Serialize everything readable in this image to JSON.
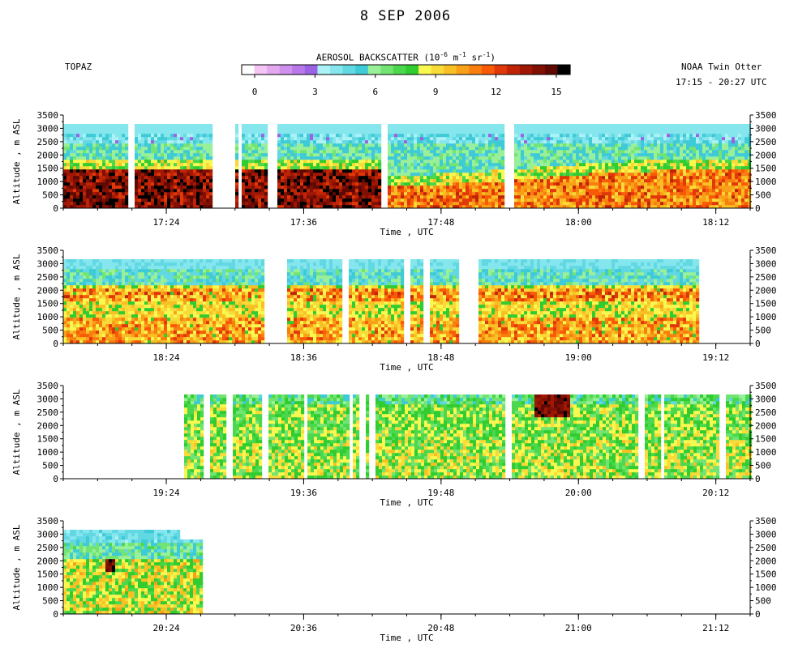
{
  "title": "8 SEP 2006",
  "left_label": "TOPAZ",
  "right_label_line1": "NOAA Twin Otter",
  "right_label_line2": "17:15 - 20:27 UTC",
  "colorbar": {
    "title_prefix": "AEROSOL BACKSCATTER (10",
    "title_exp1": "-6",
    "title_mid1": " m",
    "title_exp2": "-1",
    "title_mid2": " sr",
    "title_exp3": "-1",
    "title_suffix": ")",
    "range": [
      0,
      15
    ],
    "ticks": [
      "0",
      "3",
      "6",
      "9",
      "12",
      "15"
    ],
    "colors": [
      "#ffffff",
      "#f4c4f4",
      "#e4a8f0",
      "#d090ee",
      "#b878ea",
      "#9c62e6",
      "#aaf2f6",
      "#86e6ee",
      "#62d8e2",
      "#3ecad6",
      "#98f098",
      "#72e472",
      "#4cd84c",
      "#30cc30",
      "#f8f850",
      "#f8da38",
      "#f8c024",
      "#f8a018",
      "#f87e10",
      "#f85a08",
      "#e03808",
      "#c02406",
      "#a01804",
      "#801004",
      "#600802",
      "#000000"
    ]
  },
  "chart_data": [
    {
      "type": "heatmap",
      "title": "",
      "xlabel": "Time , UTC",
      "ylabel": "Altitude , m ASL",
      "x_range": [
        "17:15",
        "18:15"
      ],
      "ylim": [
        0,
        3500
      ],
      "x_ticks": [
        "17:24",
        "17:36",
        "17:48",
        "18:00",
        "18:12"
      ],
      "y_ticks": [
        "0",
        "500",
        "1000",
        "1500",
        "2000",
        "2500",
        "3000",
        "3500"
      ]
    },
    {
      "type": "heatmap",
      "title": "",
      "xlabel": "Time , UTC",
      "ylabel": "Altitude , m ASL",
      "x_range": [
        "18:15",
        "19:15"
      ],
      "ylim": [
        0,
        3500
      ],
      "x_ticks": [
        "18:24",
        "18:36",
        "18:48",
        "19:00",
        "19:12"
      ],
      "y_ticks": [
        "0",
        "500",
        "1000",
        "1500",
        "2000",
        "2500",
        "3000",
        "3500"
      ]
    },
    {
      "type": "heatmap",
      "title": "",
      "xlabel": "Time , UTC",
      "ylabel": "Altitude , m ASL",
      "x_range": [
        "19:15",
        "20:15"
      ],
      "ylim": [
        0,
        3500
      ],
      "x_ticks": [
        "19:24",
        "19:36",
        "19:48",
        "20:00",
        "20:12"
      ],
      "y_ticks": [
        "0",
        "500",
        "1000",
        "1500",
        "2000",
        "2500",
        "3000",
        "3500"
      ]
    },
    {
      "type": "heatmap",
      "title": "",
      "xlabel": "Time , UTC",
      "ylabel": "Altitude , m ASL",
      "x_range": [
        "20:15",
        "21:15"
      ],
      "ylim": [
        0,
        3500
      ],
      "x_ticks": [
        "20:24",
        "20:36",
        "20:48",
        "21:00",
        "21:12"
      ],
      "y_ticks": [
        "0",
        "500",
        "1000",
        "1500",
        "2000",
        "2500",
        "3000",
        "3500"
      ]
    }
  ]
}
